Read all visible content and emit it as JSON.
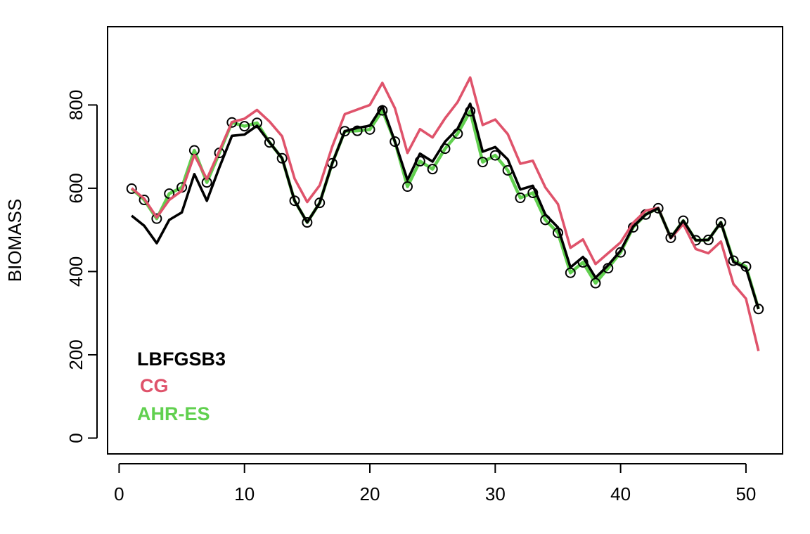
{
  "chart_data": {
    "type": "line",
    "title": "",
    "xlabel": "",
    "ylabel": "BIOMASS",
    "xlim": [
      -0.92,
      52.92
    ],
    "ylim": [
      -38,
      988
    ],
    "xticks": [
      0,
      10,
      20,
      30,
      40,
      50
    ],
    "yticks": [
      0,
      200,
      400,
      600,
      800
    ],
    "grid": false,
    "legend_position": "bottom-left",
    "x": [
      1,
      2,
      3,
      4,
      5,
      6,
      7,
      8,
      9,
      10,
      11,
      12,
      13,
      14,
      15,
      16,
      17,
      18,
      19,
      20,
      21,
      22,
      23,
      24,
      25,
      26,
      27,
      28,
      29,
      30,
      31,
      32,
      33,
      34,
      35,
      36,
      37,
      38,
      39,
      40,
      41,
      42,
      43,
      44,
      45,
      46,
      47,
      48,
      49,
      50,
      51
    ],
    "series": [
      {
        "name": "AHR-ES",
        "color": "#61d04f",
        "style": "line",
        "values": [
          599,
          572,
          527,
          587,
          602,
          691,
          614,
          685,
          758,
          749,
          757,
          710,
          672,
          570,
          518,
          565,
          660,
          737,
          738,
          741,
          787,
          712,
          604,
          665,
          646,
          695,
          731,
          785,
          663,
          679,
          643,
          577,
          589,
          524,
          493,
          397,
          422,
          372,
          408,
          446,
          506,
          537,
          552,
          481,
          522,
          475,
          476,
          518,
          426,
          412,
          310
        ]
      },
      {
        "name": "",
        "color": "#000000",
        "style": "points",
        "values": [
          599,
          572,
          527,
          587,
          602,
          691,
          614,
          685,
          758,
          749,
          757,
          710,
          672,
          570,
          518,
          565,
          660,
          737,
          738,
          741,
          787,
          712,
          604,
          665,
          646,
          695,
          731,
          785,
          663,
          679,
          643,
          577,
          589,
          524,
          493,
          397,
          422,
          372,
          408,
          446,
          506,
          537,
          552,
          481,
          522,
          475,
          476,
          518,
          426,
          412,
          310
        ]
      },
      {
        "name": "CG",
        "color": "#df536b",
        "style": "line",
        "values": [
          600,
          575,
          530,
          572,
          594,
          680,
          622,
          690,
          759,
          767,
          788,
          760,
          725,
          623,
          567,
          607,
          700,
          778,
          789,
          800,
          853,
          792,
          685,
          742,
          722,
          768,
          807,
          866,
          752,
          765,
          730,
          659,
          666,
          602,
          562,
          457,
          477,
          418,
          444,
          470,
          517,
          546,
          553,
          480,
          514,
          454,
          444,
          472,
          370,
          335,
          209
        ]
      },
      {
        "name": "LBFGSB3",
        "color": "#000000",
        "style": "line",
        "values": [
          534,
          510,
          468,
          524,
          542,
          634,
          570,
          650,
          726,
          729,
          750,
          710,
          672,
          570,
          518,
          565,
          660,
          737,
          745,
          750,
          797,
          712,
          620,
          683,
          664,
          712,
          743,
          803,
          688,
          699,
          669,
          597,
          606,
          537,
          506,
          410,
          435,
          385,
          415,
          450,
          508,
          537,
          552,
          481,
          522,
          475,
          476,
          518,
          423,
          408,
          310
        ]
      }
    ]
  },
  "legend": {
    "items": [
      {
        "label": "LBFGSB3",
        "color": "#000000"
      },
      {
        "label": "CG",
        "color": "#df536b"
      },
      {
        "label": "AHR-ES",
        "color": "#61d04f"
      }
    ]
  }
}
